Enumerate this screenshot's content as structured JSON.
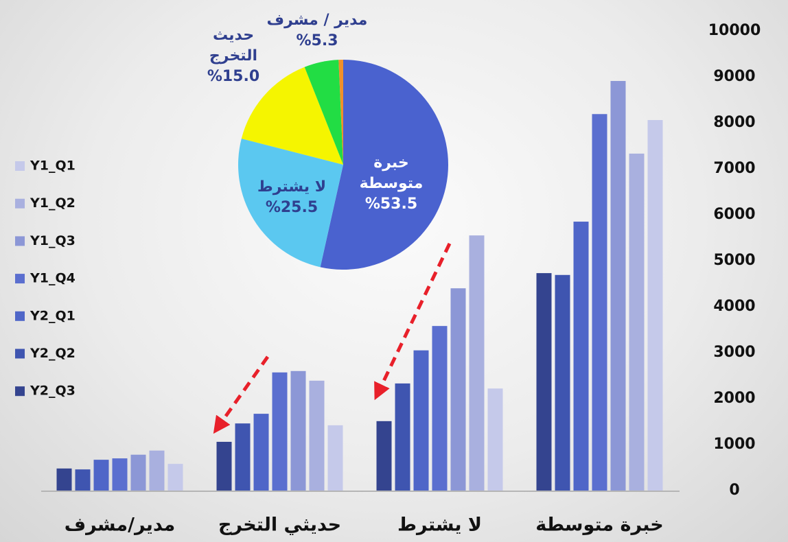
{
  "chart_data": [
    {
      "type": "bar",
      "categories": [
        "مدير/مشرف",
        "حديثي التخرج",
        "لا يشترط",
        "خبرة متوسطة"
      ],
      "series": [
        {
          "name": "Y1_Q1",
          "color": "#c5c9ea",
          "values": [
            580,
            1420,
            2220,
            8060
          ]
        },
        {
          "name": "Y1_Q2",
          "color": "#a9b0df",
          "values": [
            870,
            2390,
            5550,
            7330
          ]
        },
        {
          "name": "Y1_Q3",
          "color": "#8c97d6",
          "values": [
            780,
            2600,
            4400,
            8910
          ]
        },
        {
          "name": "Y1_Q4",
          "color": "#5b6fcf",
          "values": [
            700,
            2570,
            3580,
            8190
          ]
        },
        {
          "name": "Y2_Q1",
          "color": "#4f66c8",
          "values": [
            670,
            1670,
            3050,
            5850
          ]
        },
        {
          "name": "Y2_Q2",
          "color": "#3f55b0",
          "values": [
            460,
            1460,
            2330,
            4690
          ]
        },
        {
          "name": "Y2_Q3",
          "color": "#34448f",
          "values": [
            480,
            1060,
            1510,
            4730
          ]
        }
      ],
      "ylim": [
        0,
        10000
      ],
      "yticks": [
        0,
        1000,
        2000,
        3000,
        4000,
        5000,
        6000,
        7000,
        8000,
        9000,
        10000
      ],
      "legend": "left"
    },
    {
      "type": "pie",
      "labels": [
        "خبرة متوسطة",
        "لا يشترط",
        "حديث التخرج",
        "مدير / مشرف",
        null
      ],
      "values": [
        53.5,
        25.5,
        15.0,
        5.3,
        0.7
      ],
      "value_labels": [
        "%53.5",
        "%25.5",
        "%15.0",
        "%5.3",
        null
      ],
      "colors": [
        "#4a62cf",
        "#5bc8f0",
        "#f5f500",
        "#22dd44",
        "#f0902a"
      ]
    }
  ]
}
